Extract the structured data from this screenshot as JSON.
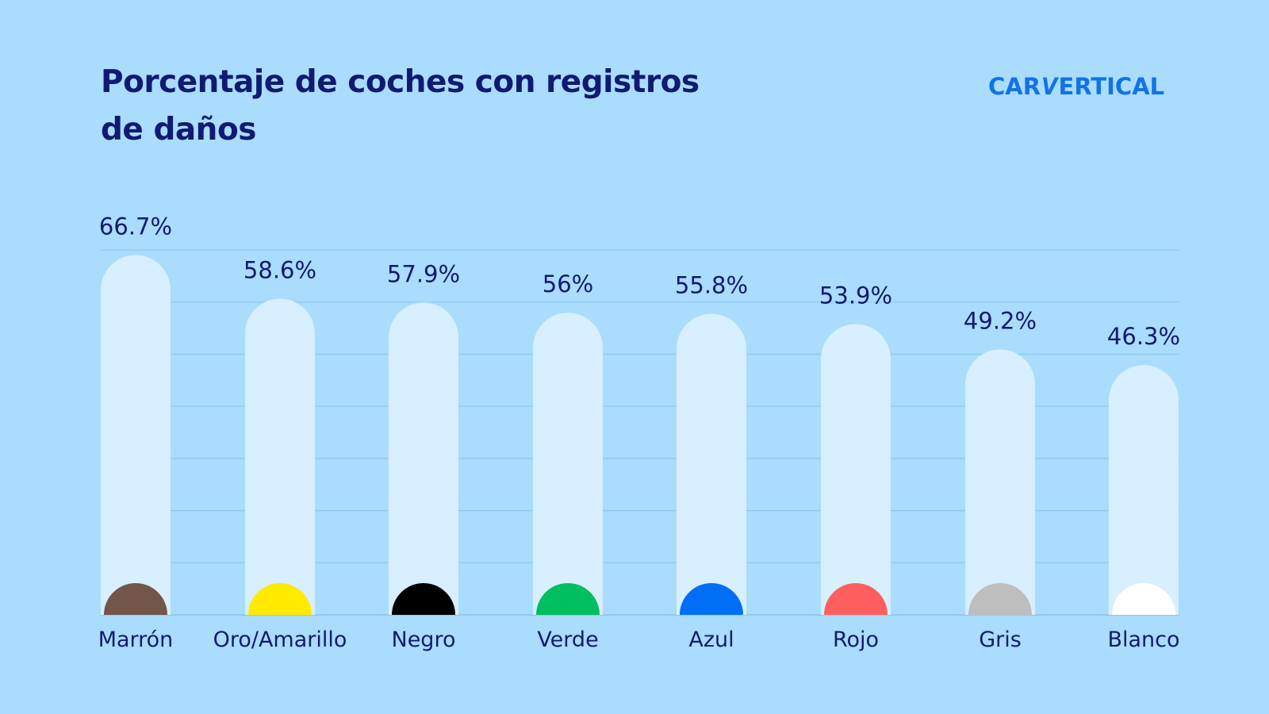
{
  "title": "Porcentaje de coches con registros de daños",
  "logo": {
    "part1": "CAR",
    "part2": "V",
    "part3": "ERTICAL"
  },
  "chart_data": {
    "type": "bar",
    "title": "Porcentaje de coches con registros de daños",
    "xlabel": "",
    "ylabel": "",
    "grid": true,
    "ylim": [
      0,
      70
    ],
    "categories": [
      "Marrón",
      "Oro/Amarillo",
      "Negro",
      "Verde",
      "Azul",
      "Rojo",
      "Gris",
      "Blanco"
    ],
    "values": [
      66.7,
      58.6,
      57.9,
      56,
      55.8,
      53.9,
      49.2,
      46.3
    ],
    "value_labels": [
      "66.7%",
      "58.6%",
      "57.9%",
      "56%",
      "55.8%",
      "53.9%",
      "49.2%",
      "46.3%"
    ],
    "marker_colors": [
      "#74554a",
      "#ffea00",
      "#000000",
      "#00bf60",
      "#006ef5",
      "#ff5e5e",
      "#bebebe",
      "#ffffff"
    ],
    "bar_color": "#d7effe",
    "grid_color": "#8ec8ee"
  }
}
